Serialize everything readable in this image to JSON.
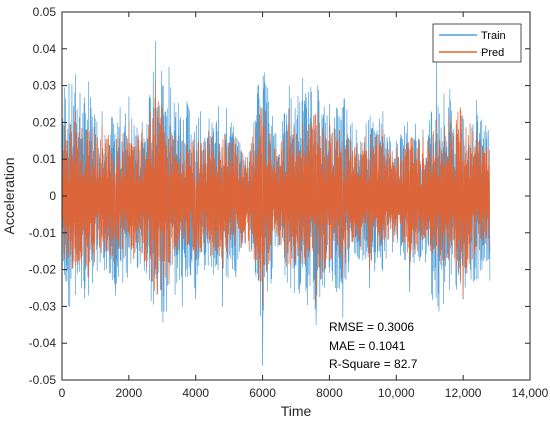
{
  "chart_data": {
    "type": "line",
    "title": "",
    "xlabel": "Time",
    "ylabel": "Acceleration",
    "xlim": [
      0,
      14000
    ],
    "ylim": [
      -0.05,
      0.05
    ],
    "xticks": [
      0,
      2000,
      4000,
      6000,
      8000,
      10000,
      12000,
      14000
    ],
    "xtick_labels": [
      "0",
      "2000",
      "4000",
      "6000",
      "8000",
      "10,000",
      "12,000",
      "14,000"
    ],
    "yticks": [
      -0.05,
      -0.04,
      -0.03,
      -0.02,
      -0.01,
      0,
      0.01,
      0.02,
      0.03,
      0.04,
      0.05
    ],
    "ytick_labels": [
      "-0.05",
      "-0.04",
      "-0.03",
      "-0.02",
      "-0.01",
      "0",
      "0.01",
      "0.02",
      "0.03",
      "0.04",
      "0.05"
    ],
    "grid": false,
    "legend_position": "top-right",
    "series": [
      {
        "name": "Train",
        "color": "#4f9fd8",
        "x": [
          0,
          400,
          800,
          1200,
          1600,
          2000,
          2400,
          2800,
          3200,
          3600,
          4000,
          4400,
          4800,
          5200,
          5600,
          6000,
          6400,
          6800,
          7200,
          7600,
          8000,
          8400,
          8800,
          9200,
          9600,
          10000,
          10400,
          10800,
          11200,
          11600,
          12000,
          12400,
          12800
        ],
        "values": [
          0.037,
          0.033,
          0.031,
          0.023,
          -0.027,
          0.027,
          0.02,
          0.042,
          0.035,
          -0.03,
          -0.028,
          0.021,
          -0.03,
          -0.022,
          0.012,
          -0.046,
          0.017,
          0.03,
          0.032,
          -0.035,
          0.025,
          -0.033,
          0.018,
          -0.025,
          0.023,
          0.015,
          -0.026,
          0.018,
          0.037,
          0.029,
          -0.028,
          0.026,
          -0.023
        ]
      },
      {
        "name": "Pred",
        "color": "#e8602c",
        "x": [
          0,
          400,
          800,
          1200,
          1600,
          2000,
          2400,
          2800,
          3200,
          3600,
          4000,
          4400,
          4800,
          5200,
          5600,
          6000,
          6400,
          6800,
          7200,
          7600,
          8000,
          8400,
          8800,
          9200,
          9600,
          10000,
          10400,
          10800,
          11200,
          11600,
          12000,
          12400,
          12800
        ],
        "values": [
          0.021,
          0.023,
          -0.022,
          0.019,
          -0.018,
          0.02,
          0.018,
          0.031,
          -0.024,
          0.015,
          -0.017,
          0.018,
          -0.02,
          0.016,
          -0.015,
          -0.03,
          0.013,
          0.024,
          0.02,
          -0.029,
          0.02,
          -0.022,
          0.014,
          -0.02,
          0.018,
          0.013,
          -0.019,
          0.016,
          0.021,
          0.022,
          -0.028,
          0.017,
          -0.015
        ]
      }
    ],
    "annotations": [
      "RMSE = 0.3006",
      "MAE = 0.1041",
      "R-Square = 82.7"
    ]
  }
}
